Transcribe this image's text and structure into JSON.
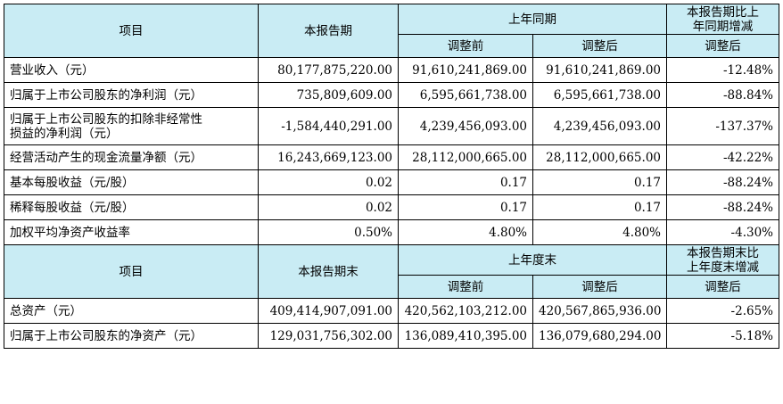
{
  "section1": {
    "header": {
      "item": "项目",
      "current": "本报告期",
      "prior": "上年同期",
      "change_line1": "本报告期比上",
      "change_line2": "年同期增减",
      "before": "调整前",
      "after": "调整后",
      "change_after": "调整后"
    },
    "rows": [
      {
        "label": "营业收入（元）",
        "current": "80,177,875,220.00",
        "before": "91,610,241,869.00",
        "after": "91,610,241,869.00",
        "change": "-12.48%"
      },
      {
        "label": "归属于上市公司股东的净利润（元）",
        "current": "735,809,609.00",
        "before": "6,595,661,738.00",
        "after": "6,595,661,738.00",
        "change": "-88.84%"
      },
      {
        "label_line1": "归属于上市公司股东的扣除非经常性",
        "label_line2": "损益的净利润（元）",
        "current": "-1,584,440,291.00",
        "before": "4,239,456,093.00",
        "after": "4,239,456,093.00",
        "change": "-137.37%"
      },
      {
        "label": "经营活动产生的现金流量净额（元）",
        "current": "16,243,669,123.00",
        "before": "28,112,000,665.00",
        "after": "28,112,000,665.00",
        "change": "-42.22%"
      },
      {
        "label": "基本每股收益（元/股）",
        "current": "0.02",
        "before": "0.17",
        "after": "0.17",
        "change": "-88.24%"
      },
      {
        "label": "稀释每股收益（元/股）",
        "current": "0.02",
        "before": "0.17",
        "after": "0.17",
        "change": "-88.24%"
      },
      {
        "label": "加权平均净资产收益率",
        "current": "0.50%",
        "before": "4.80%",
        "after": "4.80%",
        "change": "-4.30%"
      }
    ]
  },
  "section2": {
    "header": {
      "item": "项目",
      "current": "本报告期末",
      "prior": "上年度末",
      "change_line1": "本报告期末比",
      "change_line2": "上年度末增减",
      "before": "调整前",
      "after": "调整后",
      "change_after": "调整后"
    },
    "rows": [
      {
        "label": "总资产（元）",
        "current": "409,414,907,091.00",
        "before": "420,562,103,212.00",
        "after": "420,567,865,936.00",
        "change": "-2.65%"
      },
      {
        "label": "归属于上市公司股东的净资产（元）",
        "current": "129,031,756,302.00",
        "before": "136,089,410,395.00",
        "after": "136,079,680,294.00",
        "change": "-5.18%"
      }
    ]
  }
}
